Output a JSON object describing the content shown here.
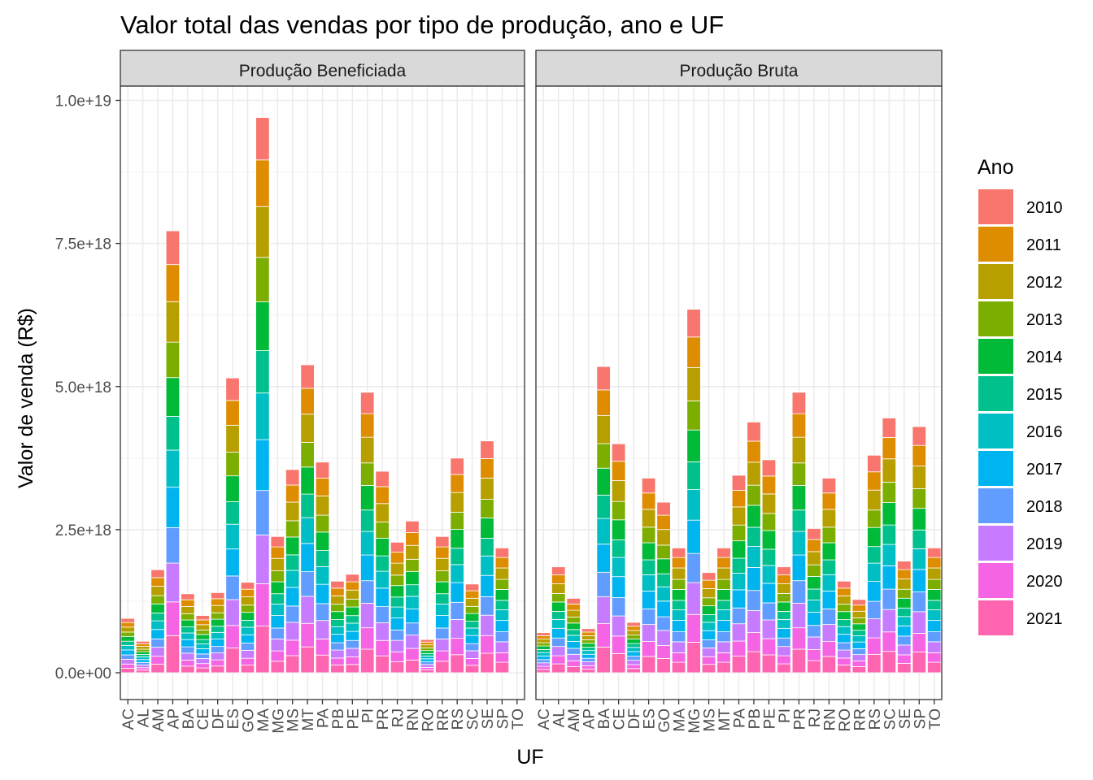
{
  "chart_data": {
    "type": "bar",
    "stacked": true,
    "title": "Valor total das vendas por tipo de produção, ano e UF",
    "xlabel": "UF",
    "ylabel": "Valor de venda (R$)",
    "ylim": [
      0,
      1e+19
    ],
    "y_ticks": [
      0,
      2.5e+18,
      5e+18,
      7.5e+18,
      1e+19
    ],
    "y_tick_labels": [
      "0.0e+00",
      "2.5e+18",
      "5.0e+18",
      "7.5e+18",
      "1.0e+19"
    ],
    "grid": true,
    "legend_position": "right",
    "legend_title": "Ano",
    "categories": [
      "AC",
      "AL",
      "AM",
      "AP",
      "BA",
      "CE",
      "DF",
      "ES",
      "GO",
      "MA",
      "MG",
      "MS",
      "MT",
      "PA",
      "PB",
      "PE",
      "PI",
      "PR",
      "RJ",
      "RN",
      "RO",
      "RR",
      "RS",
      "SC",
      "SE",
      "SP",
      "TO"
    ],
    "series_years": [
      "2010",
      "2011",
      "2012",
      "2013",
      "2014",
      "2015",
      "2016",
      "2017",
      "2018",
      "2019",
      "2020",
      "2021"
    ],
    "series_colors": [
      "#F8766D",
      "#DE8C00",
      "#B79F00",
      "#7CAE00",
      "#00BA38",
      "#00C08B",
      "#00BFC4",
      "#00B4F0",
      "#619CFF",
      "#C77CFF",
      "#F564E3",
      "#FF64B0"
    ],
    "panels": [
      {
        "name": "Produção Beneficiada",
        "categories": [
          "AC",
          "AL",
          "AM",
          "AP",
          "BA",
          "CE",
          "DF",
          "ES",
          "GO",
          "MA",
          "MG",
          "MS",
          "MT",
          "PA",
          "PB",
          "PE",
          "PI",
          "PR",
          "RJ",
          "RN",
          "RO",
          "RR",
          "RS",
          "SC",
          "SE",
          "SP",
          "TO"
        ],
        "totals": [
          9.5e+17,
          5.5e+17,
          1.8e+18,
          7.72e+18,
          1.38e+18,
          1e+18,
          1.4e+18,
          5.15e+18,
          1.58e+18,
          9.7e+18,
          2.38e+18,
          3.55e+18,
          5.38e+18,
          3.68e+18,
          1.6e+18,
          1.72e+18,
          4.9e+18,
          3.52e+18,
          2.28e+18,
          2.65e+18,
          5.8e+17,
          2.38e+18,
          3.75e+18,
          1.55e+18,
          4.05e+18,
          2.18e+18,
          0
        ]
      },
      {
        "name": "Produção Bruta",
        "categories": [
          "AC",
          "AL",
          "AM",
          "AP",
          "BA",
          "CE",
          "DF",
          "ES",
          "GO",
          "MA",
          "MG",
          "MS",
          "MT",
          "PA",
          "PB",
          "PE",
          "PI",
          "PR",
          "RJ",
          "RN",
          "RO",
          "RR",
          "RS",
          "SC",
          "SE",
          "SP",
          "TO"
        ],
        "totals": [
          7e+17,
          1.85e+18,
          1.3e+18,
          7.7e+17,
          5.35e+18,
          4e+18,
          8.8e+17,
          3.4e+18,
          2.98e+18,
          2.18e+18,
          6.35e+18,
          1.75e+18,
          2.18e+18,
          3.45e+18,
          4.38e+18,
          3.72e+18,
          1.85e+18,
          4.9e+18,
          2.52e+18,
          3.4e+18,
          1.6e+18,
          1.28e+18,
          3.8e+18,
          4.45e+18,
          1.95e+18,
          4.3e+18,
          2.18e+18
        ]
      }
    ]
  }
}
